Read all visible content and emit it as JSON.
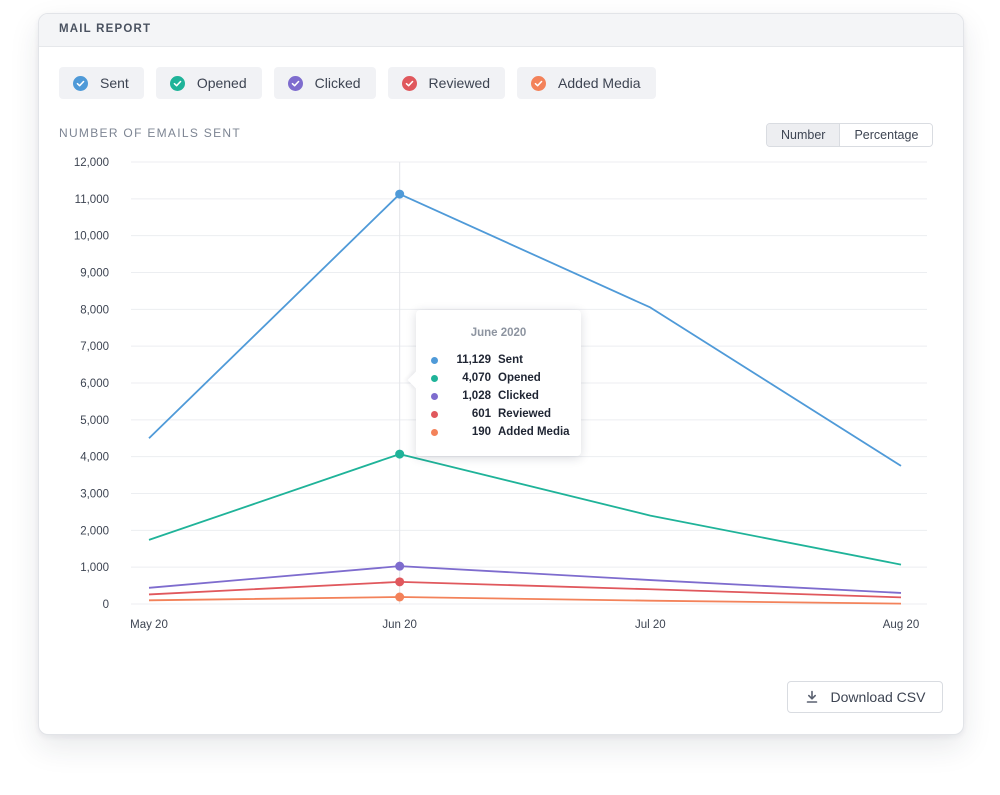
{
  "card": {
    "title": "MAIL REPORT"
  },
  "legend": [
    {
      "label": "Sent",
      "color": "#4f9ad8",
      "icon": "check-circle-icon"
    },
    {
      "label": "Opened",
      "color": "#1fb399",
      "icon": "check-circle-icon"
    },
    {
      "label": "Clicked",
      "color": "#7e6cce",
      "icon": "check-circle-icon"
    },
    {
      "label": "Reviewed",
      "color": "#e0585d",
      "icon": "check-circle-icon"
    },
    {
      "label": "Added Media",
      "color": "#f3825a",
      "icon": "check-circle-icon"
    }
  ],
  "section_label": "NUMBER OF EMAILS SENT",
  "toggle": {
    "number": "Number",
    "percentage": "Percentage",
    "selected": "Number"
  },
  "tooltip": {
    "title": "June 2020",
    "rows": [
      {
        "value": "11,129",
        "label": "Sent",
        "color": "#4f9ad8"
      },
      {
        "value": "4,070",
        "label": "Opened",
        "color": "#1fb399"
      },
      {
        "value": "1,028",
        "label": "Clicked",
        "color": "#7e6cce"
      },
      {
        "value": "601",
        "label": "Reviewed",
        "color": "#e0585d"
      },
      {
        "value": "190",
        "label": "Added Media",
        "color": "#f3825a"
      }
    ]
  },
  "download": {
    "label": "Download CSV",
    "icon": "download-icon"
  },
  "chart_data": {
    "type": "line",
    "title": "NUMBER OF EMAILS SENT",
    "xlabel": "",
    "ylabel": "",
    "categories": [
      "May 20",
      "Jun 20",
      "Jul 20",
      "Aug 20"
    ],
    "ylim": [
      0,
      12000
    ],
    "yticks": [
      0,
      1000,
      2000,
      3000,
      4000,
      5000,
      6000,
      7000,
      8000,
      9000,
      10000,
      11000,
      12000
    ],
    "ytick_labels": [
      "0",
      "1,000",
      "2,000",
      "3,000",
      "4,000",
      "5,000",
      "6,000",
      "7,000",
      "8,000",
      "9,000",
      "10,000",
      "11,000",
      "12,000"
    ],
    "highlight_category": "Jun 20",
    "grid": true,
    "series": [
      {
        "name": "Sent",
        "color": "#4f9ad8",
        "values": [
          4500,
          11129,
          8050,
          3750
        ]
      },
      {
        "name": "Opened",
        "color": "#1fb399",
        "values": [
          1740,
          4070,
          2400,
          1070
        ]
      },
      {
        "name": "Clicked",
        "color": "#7e6cce",
        "values": [
          440,
          1028,
          650,
          300
        ]
      },
      {
        "name": "Reviewed",
        "color": "#e0585d",
        "values": [
          260,
          601,
          400,
          180
        ]
      },
      {
        "name": "Added Media",
        "color": "#f3825a",
        "values": [
          100,
          190,
          90,
          10
        ]
      }
    ]
  }
}
